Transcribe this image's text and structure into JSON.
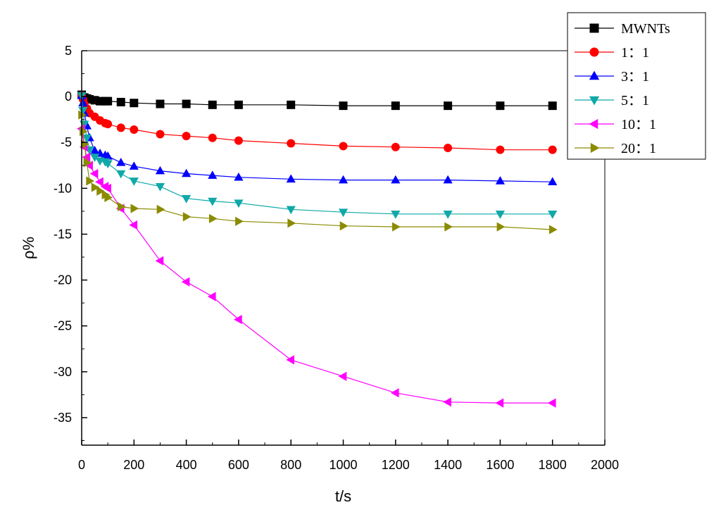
{
  "chart_data": {
    "type": "line",
    "title": "",
    "xlabel": "t/s",
    "ylabel": "ρ%",
    "xlim": [
      0,
      2000
    ],
    "ylim": [
      -38,
      5
    ],
    "xticks": [
      0,
      200,
      400,
      600,
      800,
      1000,
      1200,
      1400,
      1600,
      1800,
      2000
    ],
    "yticks": [
      5,
      0,
      -5,
      -10,
      -15,
      -20,
      -25,
      -30,
      -35
    ],
    "grid": false,
    "legend_position": "top-right",
    "series": [
      {
        "name": "MWNTs",
        "color": "#000000",
        "marker": "square",
        "x": [
          0,
          10,
          20,
          30,
          50,
          70,
          90,
          100,
          150,
          200,
          300,
          400,
          500,
          600,
          800,
          1000,
          1200,
          1400,
          1600,
          1800
        ],
        "y": [
          0.2,
          -0.1,
          -0.2,
          -0.3,
          -0.4,
          -0.5,
          -0.5,
          -0.5,
          -0.6,
          -0.7,
          -0.8,
          -0.8,
          -0.9,
          -0.9,
          -0.9,
          -1.0,
          -1.0,
          -1.0,
          -1.0,
          -1.0
        ]
      },
      {
        "name": "1：1",
        "color": "#ff0000",
        "marker": "circle",
        "x": [
          0,
          5,
          10,
          20,
          30,
          50,
          70,
          90,
          100,
          150,
          200,
          300,
          400,
          500,
          600,
          800,
          1000,
          1200,
          1400,
          1600,
          1800
        ],
        "y": [
          0.1,
          -0.3,
          -0.8,
          -1.3,
          -1.8,
          -2.2,
          -2.6,
          -2.9,
          -3.0,
          -3.4,
          -3.6,
          -4.1,
          -4.3,
          -4.5,
          -4.8,
          -5.1,
          -5.4,
          -5.5,
          -5.6,
          -5.8,
          -5.8
        ]
      },
      {
        "name": "3：1",
        "color": "#0000ff",
        "marker": "triangle-up",
        "x": [
          0,
          5,
          10,
          20,
          30,
          50,
          70,
          90,
          100,
          150,
          200,
          300,
          400,
          500,
          600,
          800,
          1000,
          1200,
          1400,
          1600,
          1800
        ],
        "y": [
          0.1,
          -0.7,
          -1.8,
          -3.2,
          -4.5,
          -5.9,
          -6.2,
          -6.4,
          -6.5,
          -7.2,
          -7.6,
          -8.1,
          -8.4,
          -8.6,
          -8.8,
          -9.0,
          -9.1,
          -9.1,
          -9.1,
          -9.2,
          -9.3
        ]
      },
      {
        "name": "5：1",
        "color": "#10a8a8",
        "marker": "triangle-down",
        "x": [
          0,
          5,
          10,
          20,
          30,
          50,
          70,
          90,
          100,
          150,
          200,
          300,
          400,
          500,
          600,
          800,
          1000,
          1200,
          1400,
          1600,
          1800
        ],
        "y": [
          0.1,
          -1.5,
          -3.0,
          -4.5,
          -5.8,
          -6.6,
          -7.0,
          -7.1,
          -7.3,
          -8.4,
          -9.2,
          -9.8,
          -11.1,
          -11.4,
          -11.6,
          -12.3,
          -12.6,
          -12.8,
          -12.8,
          -12.8,
          -12.8
        ]
      },
      {
        "name": "10：1",
        "color": "#ff00ff",
        "marker": "triangle-left",
        "x": [
          0,
          10,
          20,
          30,
          50,
          70,
          90,
          100,
          150,
          200,
          300,
          400,
          500,
          600,
          800,
          1000,
          1200,
          1400,
          1600,
          1800
        ],
        "y": [
          -3.5,
          -5.5,
          -6.6,
          -7.5,
          -8.4,
          -9.3,
          -9.8,
          -10.0,
          -12.2,
          -14.0,
          -17.9,
          -20.2,
          -21.8,
          -24.3,
          -28.7,
          -30.5,
          -32.3,
          -33.3,
          -33.4,
          -33.4
        ]
      },
      {
        "name": "20：1",
        "color": "#8b8b00",
        "marker": "triangle-right",
        "x": [
          0,
          5,
          10,
          20,
          30,
          50,
          70,
          90,
          100,
          150,
          200,
          300,
          400,
          500,
          600,
          800,
          1000,
          1200,
          1400,
          1600,
          1800
        ],
        "y": [
          -2.0,
          -3.8,
          -5.2,
          -7.2,
          -9.2,
          -9.9,
          -10.3,
          -10.7,
          -11.0,
          -12.0,
          -12.2,
          -12.3,
          -13.1,
          -13.3,
          -13.6,
          -13.8,
          -14.1,
          -14.2,
          -14.2,
          -14.2,
          -14.5
        ]
      }
    ]
  }
}
